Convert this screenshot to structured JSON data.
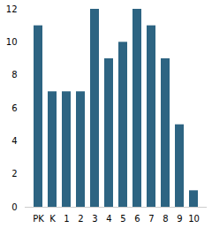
{
  "chart_data": {
    "type": "bar",
    "categories": [
      "PK",
      "K",
      "1",
      "2",
      "3",
      "4",
      "5",
      "6",
      "7",
      "8",
      "9",
      "10"
    ],
    "values": [
      11,
      7,
      7,
      7,
      12,
      9,
      10,
      12,
      11,
      9,
      5,
      1
    ],
    "color": "#2d6482",
    "ylim": [
      0,
      12
    ],
    "yticks": [
      0,
      2,
      4,
      6,
      8,
      10,
      12
    ],
    "grid": false
  }
}
